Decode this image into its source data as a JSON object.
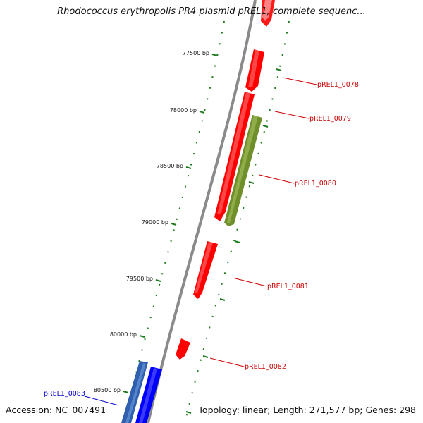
{
  "title": "Rhodococcus erythropolis PR4 plasmid pREL1, complete sequenc...",
  "footer": {
    "accession": "Accession: NC_007491",
    "summary": "Topology: linear; Length: 271,577 bp; Genes: 298"
  },
  "colors": {
    "backbone": "#8a8a8a",
    "tick": "#1e7a1e",
    "forward_gene": "#ff0000",
    "highlighted_gene": "#6f8f2a",
    "reverse_gene": "#0000ff",
    "reverse_gene_alt": "#2f5fae",
    "forward_label": "#cc0000",
    "reverse_label": "#0000cc"
  },
  "scale_ticks": [
    {
      "label": "77500 bp"
    },
    {
      "label": "78000 bp"
    },
    {
      "label": "78500 bp"
    },
    {
      "label": "79000 bp"
    },
    {
      "label": "79500 bp"
    },
    {
      "label": "80000 bp"
    },
    {
      "label": "80500 bp"
    }
  ],
  "gene_labels": [
    {
      "label": "pREL1_0078",
      "strand": "forward"
    },
    {
      "label": "pREL1_0079",
      "strand": "forward"
    },
    {
      "label": "pREL1_0080",
      "strand": "forward"
    },
    {
      "label": "pREL1_0081",
      "strand": "forward"
    },
    {
      "label": "pREL1_0082",
      "strand": "forward"
    },
    {
      "label": "pREL1_0083",
      "strand": "reverse"
    }
  ]
}
